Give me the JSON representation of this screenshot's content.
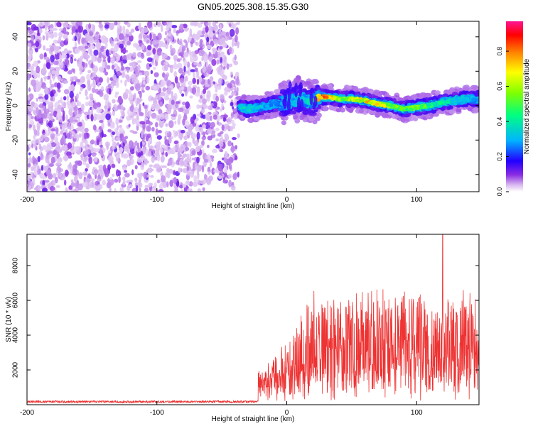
{
  "chart_data": [
    {
      "type": "heatmap",
      "title": "GN05.2025.308.15.35.G30",
      "xlabel": "Height of straight line (km)",
      "ylabel": "Frequency (Hz)",
      "xlim": [
        -200,
        148
      ],
      "ylim": [
        -50,
        49
      ],
      "xticks": [
        -200,
        -100,
        0,
        100
      ],
      "yticks": [
        -40,
        -20,
        0,
        20,
        40
      ],
      "colorbar": {
        "label": "Normalized spectral amplitude",
        "range": [
          0,
          0.97
        ],
        "ticks": [
          0.0,
          0.2,
          0.4,
          0.6,
          0.8
        ],
        "tick_labels": [
          "0.0",
          "0.2",
          "0.4",
          "0.6",
          "0.8"
        ],
        "colors": [
          "#ffffff",
          "#d8b8f0",
          "#8a2be2",
          "#2200ff",
          "#00b4ff",
          "#00ff80",
          "#80ff00",
          "#ffff00",
          "#ff8000",
          "#ff0000",
          "#ff1493"
        ]
      },
      "noise_region": {
        "x": [
          -200,
          -37
        ],
        "y": [
          -50,
          49
        ],
        "amplitude": [
          0.0,
          0.25
        ]
      },
      "signal_track": {
        "x": [
          -37,
          -30,
          -20,
          -10,
          0,
          5,
          10,
          15,
          20,
          25,
          30,
          40,
          50,
          60,
          70,
          80,
          90,
          100,
          110,
          120,
          130,
          140,
          148
        ],
        "y": [
          -1,
          -2,
          -1,
          1,
          2,
          3,
          4,
          3,
          2,
          5,
          5,
          4,
          4,
          3,
          1,
          0,
          -2,
          -1,
          0,
          2,
          3,
          4,
          4
        ],
        "amplitude": [
          0.35,
          0.4,
          0.35,
          0.3,
          0.3,
          0.35,
          0.4,
          0.35,
          0.5,
          0.9,
          0.85,
          0.6,
          0.7,
          0.75,
          0.85,
          0.6,
          0.55,
          0.6,
          0.5,
          0.45,
          0.4,
          0.35,
          0.3
        ]
      }
    },
    {
      "type": "line",
      "title": "",
      "xlabel": "Height of straight line (km)",
      "ylabel": "SNR (10 * v/v)",
      "xlim": [
        -200,
        148
      ],
      "ylim": [
        0,
        9800
      ],
      "xticks": [
        -200,
        -100,
        0,
        100
      ],
      "yticks": [
        2000,
        4000,
        6000,
        8000
      ],
      "series": [
        {
          "name": "SNR",
          "color": "#ee3333",
          "segments": [
            {
              "x": [
                -200,
                -22
              ],
              "base": 170,
              "spread": 130
            },
            {
              "x": [
                -22,
                0
              ],
              "base": 1600,
              "spread": 1700
            },
            {
              "x": [
                0,
                148
              ],
              "base": 1500,
              "spread": 5200
            }
          ],
          "peak": {
            "x": 120,
            "y": 9800
          }
        }
      ]
    }
  ]
}
